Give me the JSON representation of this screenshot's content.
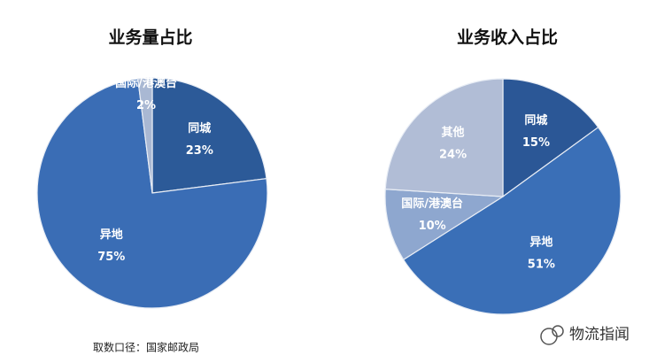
{
  "chart_data": [
    {
      "type": "pie",
      "title": "业务量占比",
      "categories": [
        "同城",
        "异地",
        "国际/港澳台"
      ],
      "values": [
        23,
        75,
        2
      ],
      "value_labels": [
        "23%",
        "75%",
        "2%"
      ],
      "colors": [
        "#2c5a98",
        "#3a6db5",
        "#a9b8d3"
      ]
    },
    {
      "type": "pie",
      "title": "业务收入占比",
      "categories": [
        "同城",
        "异地",
        "国际/港澳台",
        "其他"
      ],
      "values": [
        15,
        51,
        10,
        24
      ],
      "value_labels": [
        "15%",
        "51%",
        "10%",
        "24%"
      ],
      "colors": [
        "#2b5796",
        "#3a6fb7",
        "#8ea7cf",
        "#b1bdd6"
      ]
    }
  ],
  "source": "取数口径：国家邮政局",
  "watermark": "物流指闻"
}
